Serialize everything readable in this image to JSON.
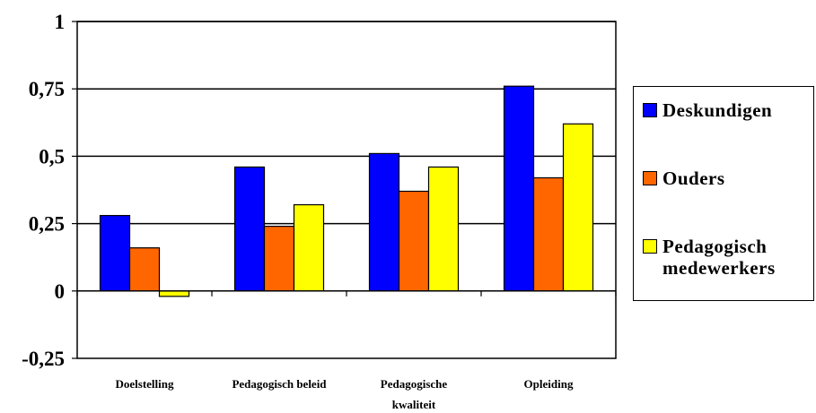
{
  "chart_data": {
    "type": "bar",
    "title": "",
    "xlabel": "",
    "ylabel": "",
    "ylim": [
      -0.25,
      1
    ],
    "yticks": [
      {
        "value": 1,
        "label": "1"
      },
      {
        "value": 0.75,
        "label": "0,75"
      },
      {
        "value": 0.5,
        "label": "0,5"
      },
      {
        "value": 0.25,
        "label": "0,25"
      },
      {
        "value": 0,
        "label": "0"
      },
      {
        "value": -0.25,
        "label": "-0,25"
      }
    ],
    "grid": true,
    "legend_position": "right",
    "categories": [
      [
        "Doelstelling"
      ],
      [
        "Pedagogisch beleid"
      ],
      [
        "Pedagogische",
        "kwaliteit"
      ],
      [
        "Opleiding"
      ]
    ],
    "series": [
      {
        "name": "Deskundigen",
        "color": "#0000FF",
        "values": [
          0.28,
          0.46,
          0.51,
          0.76
        ]
      },
      {
        "name": "Ouders",
        "color": "#FF6600",
        "values": [
          0.16,
          0.24,
          0.37,
          0.42
        ]
      },
      {
        "name": "Pedagogisch medewerkers",
        "color": "#FFFF00",
        "values": [
          -0.02,
          0.32,
          0.46,
          0.62
        ]
      }
    ]
  }
}
